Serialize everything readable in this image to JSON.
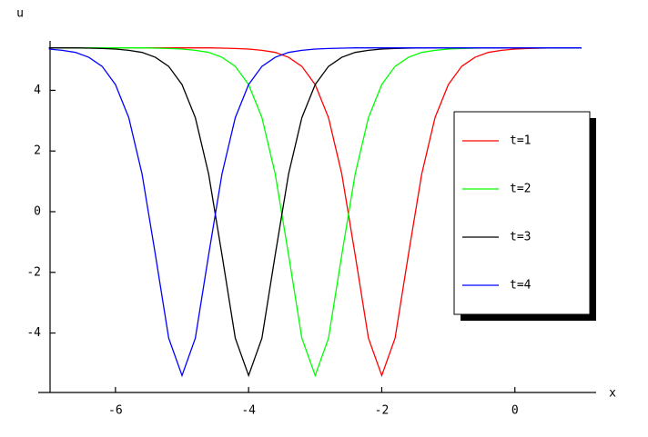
{
  "chart_data": {
    "type": "line",
    "x_label": "x",
    "y_label": "u",
    "x": [
      -7,
      -6.8,
      -6.6,
      -6.4,
      -6.2,
      -6,
      -5.8,
      -5.6,
      -5.4,
      -5.2,
      -5,
      -4.8,
      -4.6,
      -4.4,
      -4.2,
      -4,
      -3.8,
      -3.6,
      -3.4,
      -3.2,
      -3,
      -2.8,
      -2.6,
      -2.4,
      -2.2,
      -2,
      -1.8,
      -1.6,
      -1.4,
      -1.2,
      -1,
      -0.8,
      -0.6,
      -0.4,
      -0.2,
      0,
      0.2,
      0.4,
      0.6,
      0.8,
      1
    ],
    "series": [
      {
        "name": "t=1",
        "color": "#ff0000",
        "values": [
          5.4,
          5.4,
          5.4,
          5.4,
          5.4,
          5.4,
          5.4,
          5.4,
          5.4,
          5.4,
          5.4,
          5.4,
          5.4,
          5.39,
          5.38,
          5.36,
          5.32,
          5.25,
          5.09,
          4.79,
          4.19,
          3.1,
          1.24,
          -1.42,
          -4.17,
          -5.4,
          -4.17,
          -1.42,
          1.24,
          3.1,
          4.19,
          4.79,
          5.09,
          5.25,
          5.32,
          5.36,
          5.38,
          5.39,
          5.4,
          5.4,
          5.4
        ]
      },
      {
        "name": "t=2",
        "color": "#00ff00",
        "values": [
          5.4,
          5.4,
          5.4,
          5.4,
          5.4,
          5.4,
          5.4,
          5.4,
          5.39,
          5.38,
          5.36,
          5.32,
          5.25,
          5.09,
          4.79,
          4.19,
          3.1,
          1.24,
          -1.42,
          -4.17,
          -5.4,
          -4.17,
          -1.42,
          1.24,
          3.1,
          4.19,
          4.79,
          5.09,
          5.25,
          5.32,
          5.36,
          5.38,
          5.39,
          5.4,
          5.4,
          5.4,
          5.4,
          5.4,
          5.4,
          5.4,
          5.4
        ]
      },
      {
        "name": "t=3",
        "color": "#000000",
        "values": [
          5.4,
          5.4,
          5.4,
          5.39,
          5.38,
          5.36,
          5.32,
          5.25,
          5.09,
          4.79,
          4.19,
          3.1,
          1.24,
          -1.42,
          -4.17,
          -5.4,
          -4.17,
          -1.42,
          1.24,
          3.1,
          4.19,
          4.79,
          5.09,
          5.25,
          5.32,
          5.36,
          5.38,
          5.39,
          5.4,
          5.4,
          5.4,
          5.4,
          5.4,
          5.4,
          5.4,
          5.4,
          5.4,
          5.4,
          5.4,
          5.4,
          5.4
        ]
      },
      {
        "name": "t=4",
        "color": "#0000ff",
        "values": [
          5.36,
          5.32,
          5.25,
          5.09,
          4.79,
          4.19,
          3.1,
          1.24,
          -1.42,
          -4.17,
          -5.4,
          -4.17,
          -1.42,
          1.24,
          3.1,
          4.19,
          4.79,
          5.09,
          5.25,
          5.32,
          5.36,
          5.38,
          5.39,
          5.4,
          5.4,
          5.4,
          5.4,
          5.4,
          5.4,
          5.4,
          5.4,
          5.4,
          5.4,
          5.4,
          5.4,
          5.4,
          5.4,
          5.4,
          5.4,
          5.4,
          5.4
        ]
      }
    ],
    "xlim": [
      -7.16,
      1.22
    ],
    "xticks": [
      -6,
      -4,
      -2,
      0
    ],
    "ylim": [
      -5.96,
      5.63
    ],
    "yticks": [
      -4,
      -2,
      0,
      2,
      4
    ],
    "grid": false,
    "legend": "right"
  }
}
